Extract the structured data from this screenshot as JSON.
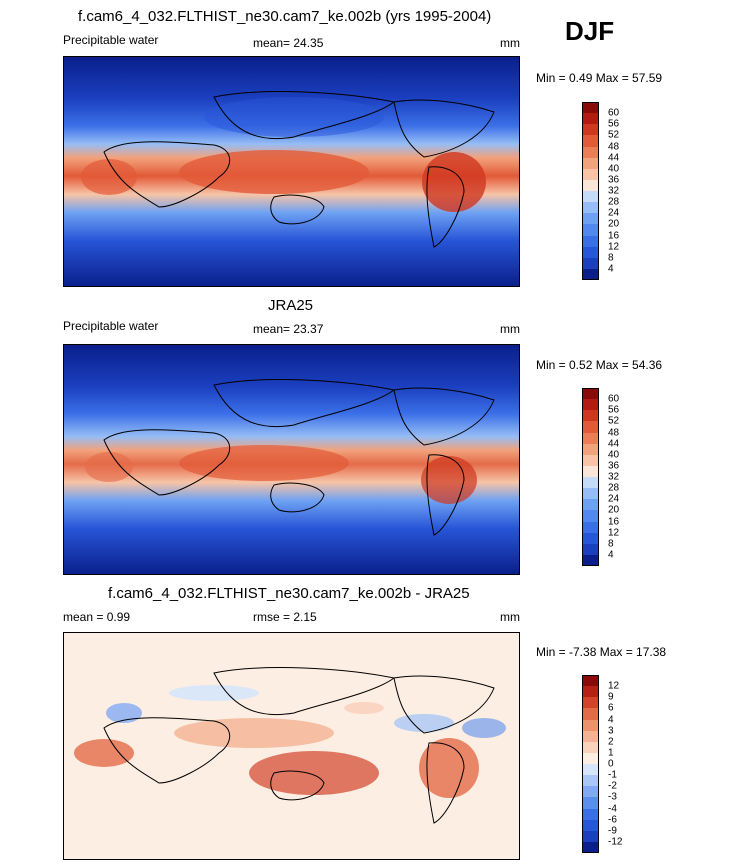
{
  "season": "DJF",
  "panels": [
    {
      "title": "f.cam6_4_032.FLTHIST_ne30.cam7_ke.002b (yrs 1995-2004)",
      "left_label": "Precipitable water",
      "stat1": "mean=  24.35",
      "stat2": "",
      "units": "mm",
      "minmax": "Min =   0.49 Max =  57.59"
    },
    {
      "title": "JRA25",
      "left_label": "Precipitable water",
      "stat1": "mean=  23.37",
      "stat2": "",
      "units": "mm",
      "minmax": "Min =   0.52 Max =  54.36"
    },
    {
      "title": "f.cam6_4_032.FLTHIST_ne30.cam7_ke.002b - JRA25",
      "left_label": "mean =    0.99",
      "stat1": "rmse =   2.15",
      "stat2": "",
      "units": "mm",
      "minmax": "Min =  -7.38 Max =  17.38"
    }
  ],
  "chart_data": [
    {
      "type": "heatmap",
      "title": "f.cam6_4_032.FLTHIST_ne30.cam7_ke.002b (yrs 1995-2004)",
      "variable": "Precipitable water",
      "units": "mm",
      "mean": 24.35,
      "min": 0.49,
      "max": 57.59,
      "colorbar_levels": [
        4,
        8,
        12,
        16,
        20,
        24,
        28,
        32,
        36,
        40,
        44,
        48,
        52,
        56,
        60
      ],
      "colors": [
        "#0a1f8c",
        "#1b3fbf",
        "#2856d8",
        "#3b6fe8",
        "#5288f0",
        "#6ea1f3",
        "#96bdf5",
        "#c5dbf8",
        "#fae6d7",
        "#f7c4a7",
        "#f2a27c",
        "#ec7e57",
        "#e25a38",
        "#cf3720",
        "#b21a12",
        "#8a0a0a"
      ]
    },
    {
      "type": "heatmap",
      "title": "JRA25",
      "variable": "Precipitable water",
      "units": "mm",
      "mean": 23.37,
      "min": 0.52,
      "max": 54.36,
      "colorbar_levels": [
        4,
        8,
        12,
        16,
        20,
        24,
        28,
        32,
        36,
        40,
        44,
        48,
        52,
        56,
        60
      ],
      "colors": [
        "#0a1f8c",
        "#1b3fbf",
        "#2856d8",
        "#3b6fe8",
        "#5288f0",
        "#6ea1f3",
        "#96bdf5",
        "#c5dbf8",
        "#fae6d7",
        "#f7c4a7",
        "#f2a27c",
        "#ec7e57",
        "#e25a38",
        "#cf3720",
        "#b21a12",
        "#8a0a0a"
      ]
    },
    {
      "type": "heatmap",
      "title": "f.cam6_4_032.FLTHIST_ne30.cam7_ke.002b - JRA25",
      "units": "mm",
      "mean": 0.99,
      "rmse": 2.15,
      "min": -7.38,
      "max": 17.38,
      "colorbar_levels": [
        -12,
        -9,
        -6,
        -4,
        -3,
        -2,
        -1,
        0,
        1,
        2,
        3,
        4,
        6,
        9,
        12
      ],
      "colors": [
        "#0a1f8c",
        "#1b3fbf",
        "#2856d8",
        "#3b6fe8",
        "#5a8ff0",
        "#82aaf3",
        "#aac7f6",
        "#d6e5fa",
        "#fdeee4",
        "#f9d2bc",
        "#f4b394",
        "#ee916d",
        "#e46b49",
        "#d2432a",
        "#b62016",
        "#8a0a0a"
      ]
    }
  ]
}
